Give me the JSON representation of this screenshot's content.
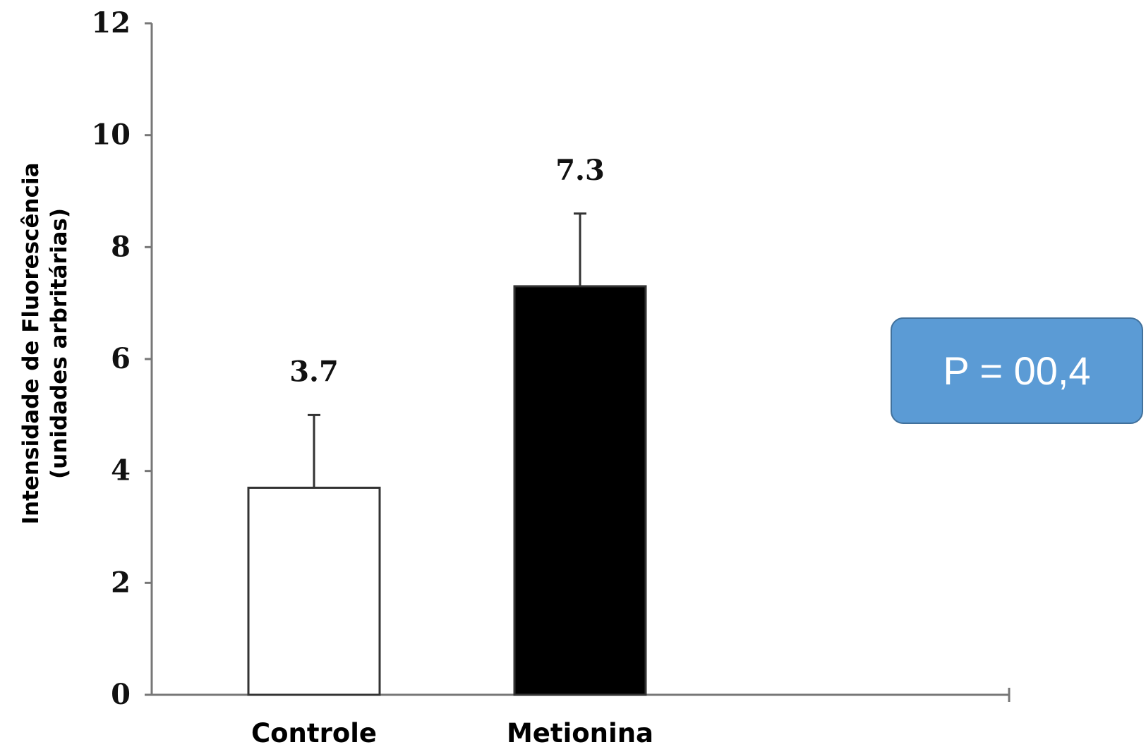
{
  "chart_data": {
    "type": "bar",
    "categories": [
      "Controle",
      "Metionina"
    ],
    "values": [
      3.7,
      7.3
    ],
    "value_labels": [
      "3.7",
      "7.3"
    ],
    "error_upper": [
      5.0,
      8.6
    ],
    "bar_colors": [
      "#ffffff",
      "#000000"
    ],
    "ylabel_line1": "Intensidade de Fluorescência",
    "ylabel_line2": "(unidades arbritárias)",
    "ylim": [
      0,
      12
    ],
    "yticks": [
      0,
      2,
      4,
      6,
      8,
      10,
      12
    ],
    "grid": false,
    "legend": "none"
  },
  "annotation": {
    "p_value_text": "P = 00,4",
    "box_color": "#5b9bd5"
  }
}
